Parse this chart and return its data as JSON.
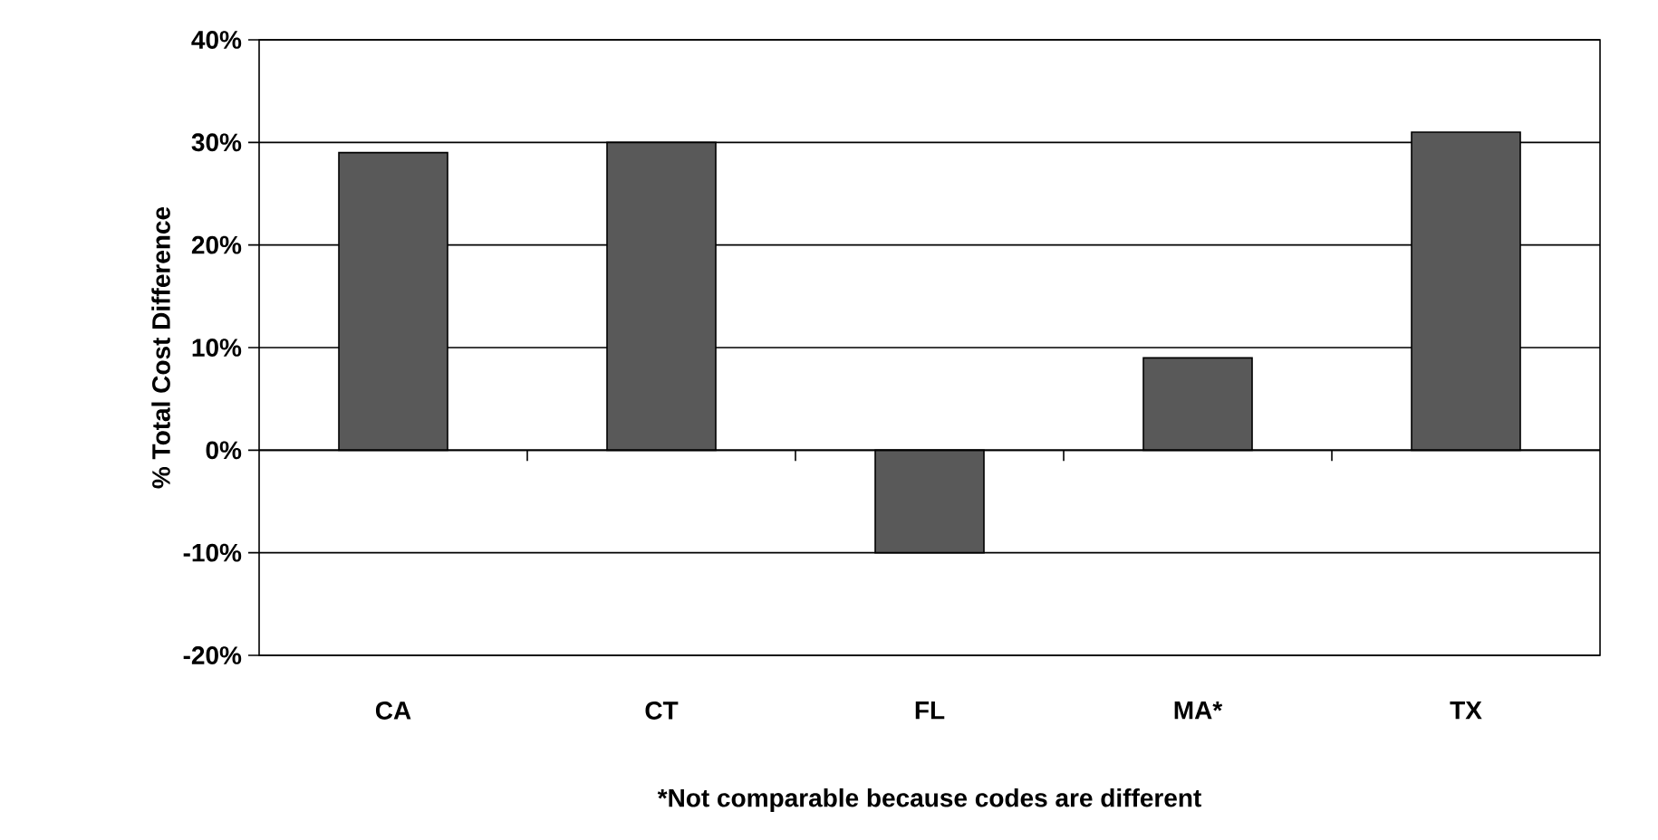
{
  "chart_data": {
    "type": "bar",
    "ylabel": "% Total Cost Difference",
    "categories": [
      "CA",
      "CT",
      "FL",
      "MA*",
      "TX"
    ],
    "values": [
      29,
      30,
      -10,
      9,
      31
    ],
    "color": "#595959",
    "ylim": [
      -20,
      40
    ],
    "yticks": [
      {
        "value": -20,
        "label": "-20%"
      },
      {
        "value": -10,
        "label": "-10%"
      },
      {
        "value": 0,
        "label": "0%"
      },
      {
        "value": 10,
        "label": "10%"
      },
      {
        "value": 20,
        "label": "20%"
      },
      {
        "value": 30,
        "label": "30%"
      },
      {
        "value": 40,
        "label": "40%"
      }
    ],
    "grid": "y",
    "annotations": [
      "*Not comparable because codes are different"
    ]
  }
}
